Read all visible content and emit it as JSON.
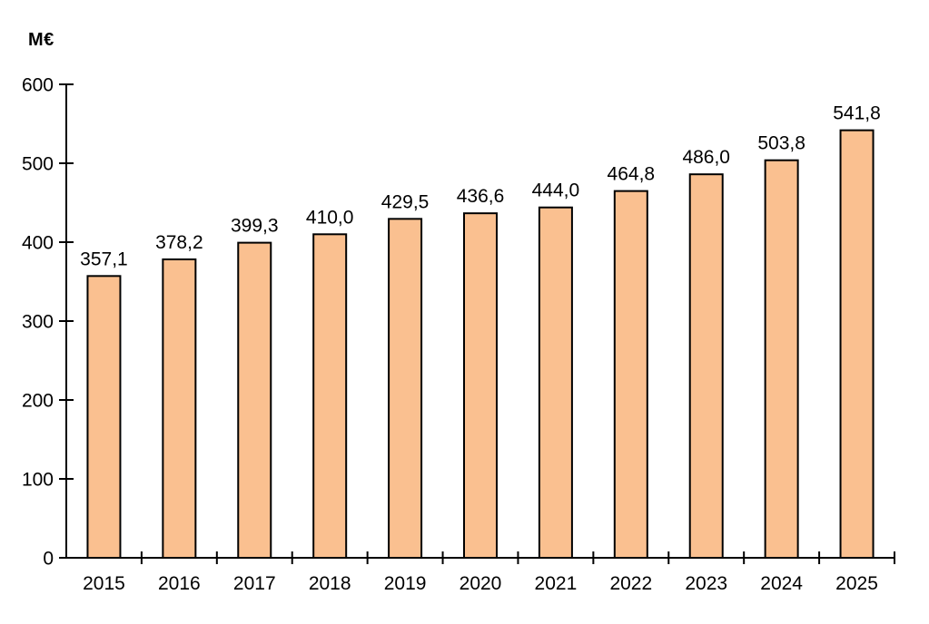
{
  "chart_data": {
    "type": "bar",
    "title": "",
    "unit_label": "M€",
    "xlabel": "",
    "ylabel": "M€",
    "categories": [
      "2015",
      "2016",
      "2017",
      "2018",
      "2019",
      "2020",
      "2021",
      "2022",
      "2023",
      "2024",
      "2025"
    ],
    "values": [
      357.1,
      378.2,
      399.3,
      410.0,
      429.5,
      436.6,
      444.0,
      464.8,
      486.0,
      503.8,
      541.8
    ],
    "value_labels": [
      "357,1",
      "378,2",
      "399,3",
      "410,0",
      "429,5",
      "436,6",
      "444,0",
      "464,8",
      "486,0",
      "503,8",
      "541,8"
    ],
    "ylim": [
      0,
      600
    ],
    "ytick_step": 100,
    "ytick_labels": [
      "0",
      "100",
      "200",
      "300",
      "400",
      "500",
      "600"
    ],
    "grid": false,
    "legend": false,
    "bar_fill": "#FAC090",
    "bar_border": "#000000",
    "axis_color": "#000000",
    "text_color": "#000000",
    "background": "#FFFFFF"
  }
}
